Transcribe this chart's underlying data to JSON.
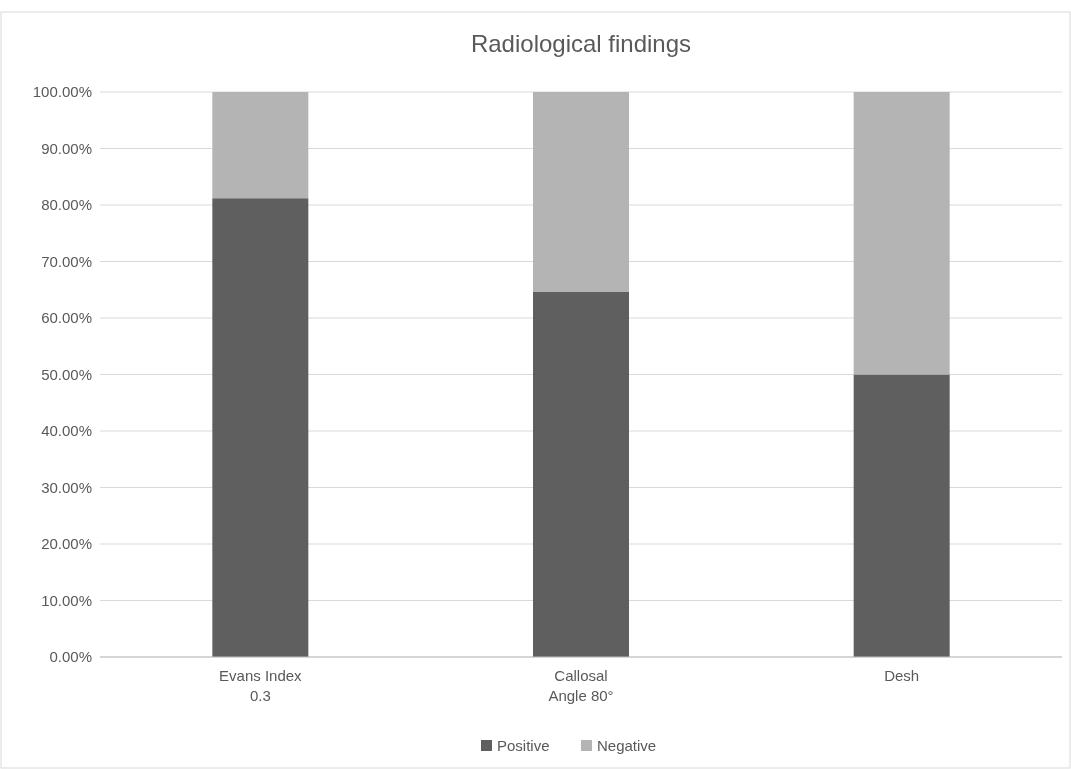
{
  "chart_data": {
    "type": "bar",
    "title": "Radiological findings",
    "stacked": true,
    "categories": [
      "Evans Index 0.3",
      "Callosal Angle 80°",
      "Desh"
    ],
    "series": [
      {
        "name": "Positive",
        "color": "#5f5f5f",
        "values": [
          81.2,
          64.6,
          50
        ]
      },
      {
        "name": "Negative",
        "color": "#b4b4b4",
        "values": [
          18.8,
          35.4,
          50
        ]
      }
    ],
    "ylim": [
      0,
      100
    ],
    "yticks": [
      {
        "value": 0,
        "label": "0.00%"
      },
      {
        "value": 10,
        "label": "10.00%"
      },
      {
        "value": 20,
        "label": "20.00%"
      },
      {
        "value": 30,
        "label": "30.00%"
      },
      {
        "value": 40,
        "label": "40.00%"
      },
      {
        "value": 50,
        "label": "50.00%"
      },
      {
        "value": 60,
        "label": "60.00%"
      },
      {
        "value": 70,
        "label": "70.00%"
      },
      {
        "value": 80,
        "label": "80.00%"
      },
      {
        "value": 90,
        "label": "90.00%"
      },
      {
        "value": 100,
        "label": "100.00%"
      }
    ],
    "grid": "y",
    "legend": "bottom"
  }
}
